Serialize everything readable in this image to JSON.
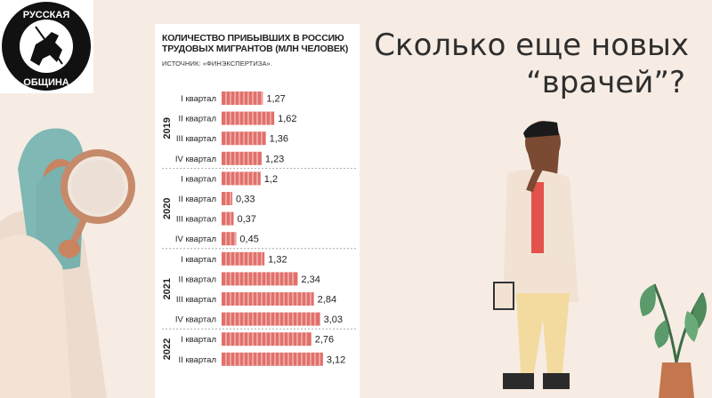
{
  "headline": {
    "line1": "Сколько еще новых",
    "line2": "“врачей”?"
  },
  "logo": {
    "text": "РУССКАЯ ОБЩИНА"
  },
  "chart_data": {
    "type": "bar",
    "orientation": "horizontal",
    "title": "КОЛИЧЕСТВО ПРИБЫВШИХ В РОССИЮ ТРУДОВЫХ МИГРАНТОВ (МЛН ЧЕЛОВЕК)",
    "source": "ИСТОЧНИК: «ФИНЭКСПЕРТИЗА».",
    "groups": [
      {
        "year": "2019",
        "quarters": [
          "I квартал",
          "II квартал",
          "III квартал",
          "IV квартал"
        ],
        "values": [
          1.27,
          1.62,
          1.36,
          1.23
        ],
        "labels": [
          "1,27",
          "1,62",
          "1,36",
          "1,23"
        ]
      },
      {
        "year": "2020",
        "quarters": [
          "I квартал",
          "II квартал",
          "III квартал",
          "IV квартал"
        ],
        "values": [
          1.2,
          0.33,
          0.37,
          0.45
        ],
        "labels": [
          "1,2",
          "0,33",
          "0,37",
          "0,45"
        ]
      },
      {
        "year": "2021",
        "quarters": [
          "I квартал",
          "II квартал",
          "III квартал",
          "IV квартал"
        ],
        "values": [
          1.32,
          2.34,
          2.84,
          3.03
        ],
        "labels": [
          "1,32",
          "2,34",
          "2,84",
          "3,03"
        ]
      },
      {
        "year": "2022",
        "quarters": [
          "I квартал",
          "II квартал"
        ],
        "values": [
          2.76,
          3.12
        ],
        "labels": [
          "2,76",
          "3,12"
        ]
      }
    ],
    "bar_color": "#e1706a"
  }
}
